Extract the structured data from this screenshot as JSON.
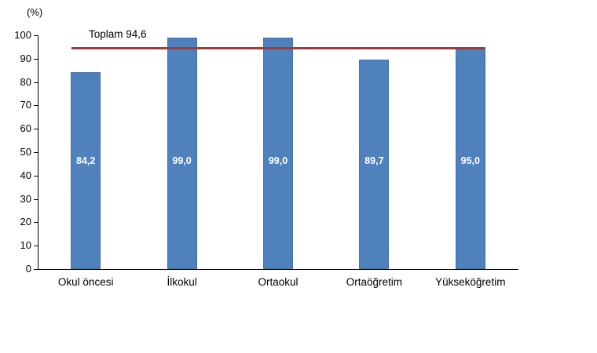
{
  "chart_data": {
    "type": "bar",
    "title": "",
    "unit_label": "(%)",
    "categories": [
      "Okul öncesi",
      "İlkokul",
      "Ortaokul",
      "Ortaöğretim",
      "Yükseköğretim"
    ],
    "values": [
      84.2,
      99.0,
      99.0,
      89.7,
      95.0
    ],
    "value_labels": [
      "84,2",
      "99,0",
      "99,0",
      "89,7",
      "95,0"
    ],
    "ylim": [
      0,
      100
    ],
    "ytick_step": 10,
    "ytick_labels": [
      "0",
      "10",
      "20",
      "30",
      "40",
      "50",
      "60",
      "70",
      "80",
      "90",
      "100"
    ],
    "bar_color": "#4F81BD",
    "reference_line": {
      "value": 94.6,
      "label": "Toplam 94,6",
      "color": "#9E3B3B"
    },
    "grid": false,
    "legend": "none"
  }
}
